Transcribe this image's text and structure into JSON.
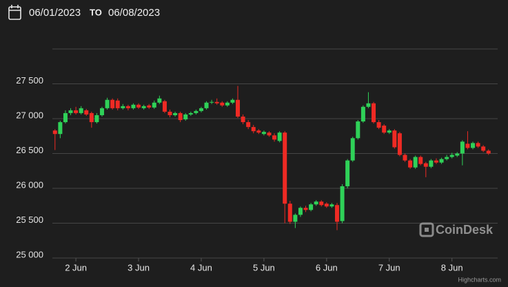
{
  "header": {
    "from": "06/01/2023",
    "to_word": "TO",
    "to": "06/08/2023"
  },
  "watermark": "CoinDesk",
  "credit": "Highcharts.com",
  "chart_data": {
    "type": "candlestick",
    "up_color": "#2fd158",
    "down_color": "#ee2a24",
    "grid": true,
    "xlim": [
      15,
      185.5
    ],
    "xticks": [
      {
        "value": 24,
        "label": "2 Jun"
      },
      {
        "value": 48,
        "label": "3 Jun"
      },
      {
        "value": 72,
        "label": "4 Jun"
      },
      {
        "value": 96,
        "label": "5 Jun"
      },
      {
        "value": 120,
        "label": "6 Jun"
      },
      {
        "value": 144,
        "label": "7 Jun"
      },
      {
        "value": 168,
        "label": "8 Jun"
      }
    ],
    "ylim": [
      25000,
      28000
    ],
    "yticks": [
      {
        "value": 25000,
        "label": "25 000"
      },
      {
        "value": 25500,
        "label": "25 500"
      },
      {
        "value": 26000,
        "label": "26 000"
      },
      {
        "value": 26500,
        "label": "26 500"
      },
      {
        "value": 27000,
        "label": "27 000"
      },
      {
        "value": 27500,
        "label": "27 500"
      }
    ],
    "x": [
      16,
      18,
      20,
      22,
      24,
      26,
      28,
      30,
      32,
      34,
      36,
      38,
      40,
      42,
      44,
      46,
      48,
      50,
      52,
      54,
      56,
      58,
      60,
      62,
      64,
      66,
      68,
      70,
      72,
      74,
      76,
      78,
      80,
      82,
      84,
      86,
      88,
      90,
      92,
      94,
      96,
      98,
      100,
      102,
      104,
      106,
      108,
      110,
      112,
      114,
      116,
      118,
      120,
      122,
      124,
      126,
      128,
      130,
      132,
      134,
      136,
      138,
      140,
      142,
      144,
      146,
      148,
      150,
      152,
      154,
      156,
      158,
      160,
      162,
      164,
      166,
      168,
      170,
      172,
      174,
      176,
      178,
      180,
      182
    ],
    "open": [
      26830,
      26780,
      26950,
      27080,
      27120,
      27080,
      27120,
      27080,
      26950,
      27050,
      27150,
      27270,
      27260,
      27150,
      27180,
      27150,
      27200,
      27150,
      27190,
      27160,
      27230,
      27250,
      27100,
      27050,
      27080,
      26990,
      27060,
      27080,
      27110,
      27150,
      27230,
      27240,
      27230,
      27190,
      27230,
      27270,
      27030,
      26950,
      26880,
      26830,
      26780,
      26800,
      26760,
      26680,
      26800,
      25780,
      25520,
      25620,
      25720,
      25690,
      25770,
      25810,
      25780,
      25740,
      25760,
      25530,
      26030,
      26400,
      26720,
      26960,
      27170,
      27220,
      26950,
      26900,
      26800,
      26830,
      26790,
      26480,
      26400,
      26300,
      26450,
      26360,
      26310,
      26400,
      26370,
      26420,
      26450,
      26470,
      26500,
      26640,
      26580,
      26650,
      26600,
      26540
    ],
    "high": [
      26850,
      26970,
      27120,
      27150,
      27170,
      27180,
      27140,
      27100,
      27080,
      27170,
      27300,
      27290,
      27290,
      27210,
      27200,
      27220,
      27220,
      27200,
      27210,
      27260,
      27330,
      27270,
      27130,
      27100,
      27100,
      27080,
      27100,
      27130,
      27170,
      27250,
      27270,
      27290,
      27250,
      27250,
      27290,
      27470,
      27060,
      26980,
      26910,
      26850,
      26830,
      26820,
      26790,
      26820,
      26820,
      25820,
      25640,
      25740,
      25750,
      25790,
      25830,
      25830,
      25800,
      25790,
      25790,
      26060,
      26420,
      26740,
      26980,
      27190,
      27380,
      27240,
      26980,
      26920,
      26850,
      26850,
      26810,
      26500,
      26420,
      26470,
      26470,
      26380,
      26420,
      26430,
      26440,
      26480,
      26510,
      26520,
      26690,
      26820,
      26670,
      26670,
      26620,
      26560
    ],
    "low": [
      26550,
      26720,
      26930,
      27050,
      27060,
      27060,
      27040,
      26870,
      26930,
      27030,
      27130,
      27130,
      27120,
      27130,
      27120,
      27130,
      27140,
      27130,
      27140,
      27140,
      27210,
      27080,
      27020,
      27030,
      26950,
      26970,
      27040,
      27060,
      27090,
      27130,
      27210,
      27200,
      27170,
      27170,
      27210,
      27010,
      26920,
      26850,
      26790,
      26780,
      26760,
      26740,
      26670,
      26660,
      25500,
      25490,
      25430,
      25590,
      25660,
      25670,
      25750,
      25740,
      25720,
      25720,
      25400,
      25500,
      26000,
      26380,
      26700,
      26940,
      27150,
      26930,
      26850,
      26780,
      26780,
      26570,
      26460,
      26380,
      26280,
      26280,
      26330,
      26160,
      26290,
      26350,
      26350,
      26400,
      26430,
      26450,
      26330,
      26560,
      26560,
      26580,
      26520,
      26480
    ],
    "close": [
      26780,
      26950,
      27080,
      27120,
      27080,
      27150,
      27060,
      26950,
      27050,
      27150,
      27270,
      27150,
      27150,
      27180,
      27150,
      27200,
      27160,
      27180,
      27160,
      27230,
      27290,
      27100,
      27050,
      27080,
      26980,
      27060,
      27080,
      27110,
      27150,
      27230,
      27240,
      27220,
      27190,
      27230,
      27270,
      27030,
      26950,
      26880,
      26820,
      26800,
      26810,
      26760,
      26700,
      26800,
      25780,
      25520,
      25620,
      25720,
      25690,
      25770,
      25810,
      25760,
      25740,
      25770,
      25520,
      26030,
      26400,
      26720,
      26960,
      27170,
      27220,
      26950,
      26870,
      26800,
      26830,
      26590,
      26480,
      26400,
      26300,
      26450,
      26350,
      26310,
      26400,
      26370,
      26420,
      26450,
      26480,
      26500,
      26670,
      26580,
      26650,
      26600,
      26540,
      26500
    ]
  }
}
